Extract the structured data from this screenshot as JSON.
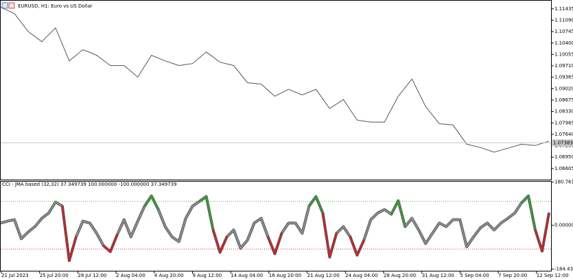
{
  "chart_data": [
    {
      "type": "line",
      "title": "EURUSD, H1:  Euro vs US Dollar",
      "color": "#555555",
      "values": [
        1.1148,
        1.1129,
        1.1075,
        1.1044,
        1.1086,
        1.0986,
        1.102,
        1.1003,
        1.0972,
        1.0972,
        1.0937,
        1.1003,
        1.0986,
        1.0972,
        1.0978,
        1.1013,
        1.0982,
        1.0972,
        1.092,
        1.0916,
        1.0879,
        1.09,
        1.0883,
        1.09,
        1.0842,
        1.0869,
        1.0807,
        1.0801,
        1.0801,
        1.0879,
        1.0931,
        1.0848,
        1.0796,
        1.0792,
        1.0734,
        1.0724,
        1.071,
        1.0722,
        1.0734,
        1.073,
        1.0743
      ],
      "ylim": [
        1.0627,
        1.1168
      ],
      "yticks": [
        1.11435,
        {
          "value": 1.1109,
          "label": "1.11090"
        },
        1.10745,
        {
          "value": 1.104,
          "label": "1.10400"
        },
        1.10055,
        {
          "value": 1.0971,
          "label": "1.09710"
        },
        1.09365,
        {
          "value": 1.0902,
          "label": "1.09020"
        },
        1.08675,
        {
          "value": 1.0833,
          "label": "1.08330"
        },
        1.07985,
        {
          "value": 1.0764,
          "label": "1.07640"
        },
        1.07295,
        {
          "value": 1.0695,
          "label": "1.06950"
        },
        1.06605
      ],
      "current_price": 1.07383
    },
    {
      "type": "oscillator",
      "title": "CCI - JMA based (32,32) 37.349739 100.000000 -100.000000 37.349739",
      "color": "#8c8c8c",
      "up_color": "#3c9a3c",
      "down_color": "#c0282c",
      "values": [
        9,
        17,
        23,
        -57,
        -29,
        -6,
        29,
        51,
        97,
        80,
        -149,
        -49,
        17,
        9,
        -34,
        -86,
        -111,
        -40,
        23,
        -49,
        17,
        80,
        123,
        66,
        -6,
        -49,
        -69,
        29,
        80,
        100,
        120,
        -20,
        -114,
        -49,
        -20,
        -97,
        -63,
        9,
        29,
        -49,
        -120,
        -34,
        9,
        9,
        -34,
        80,
        120,
        51,
        -134,
        -34,
        -6,
        -49,
        -126,
        -63,
        23,
        51,
        66,
        46,
        103,
        -6,
        29,
        -20,
        -77,
        -34,
        9,
        -6,
        23,
        23,
        -91,
        -49,
        -11,
        9,
        -20,
        9,
        29,
        51,
        94,
        123,
        -20,
        -109,
        51
      ],
      "levels": [
        {
          "value": 100,
          "color": "#3cb43c"
        },
        {
          "value": -100,
          "color": "#d23232"
        }
      ],
      "ylim": [
        -191.4,
        182.9
      ],
      "yticks": [
        180.761945,
        {
          "value": 0,
          "label": "0.000000"
        },
        -184.43476
      ],
      "x_labels": [
        "21 Jul 2023",
        "25 Jul 20:00",
        "28 Jul 12:00",
        "2 Aug 04:00",
        "4 Aug 20:00",
        "9 Aug 12:00",
        "14 Aug 04:00",
        "16 Aug 20:00",
        "21 Aug 12:00",
        "24 Aug 04:00",
        "28 Aug 20:00",
        "31 Aug 12:00",
        "5 Sep 04:00",
        "7 Sep 20:00",
        "12 Sep 12:00"
      ]
    }
  ]
}
